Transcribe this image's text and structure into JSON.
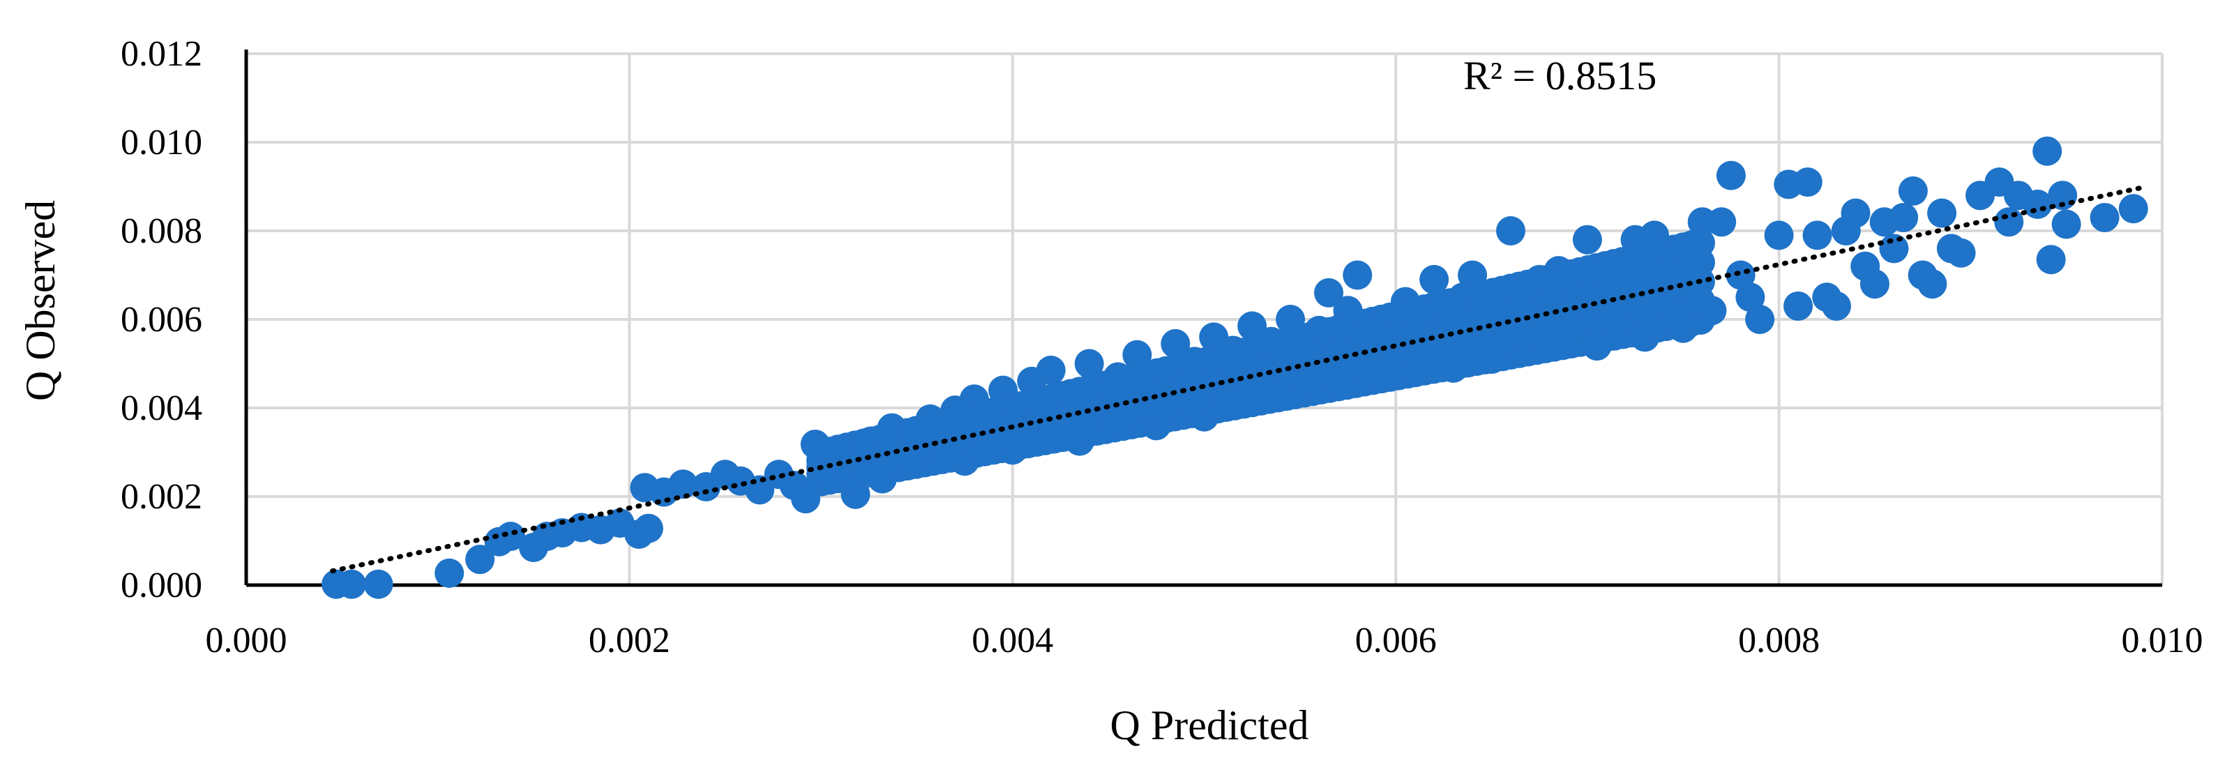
{
  "chart_data": {
    "type": "scatter",
    "xlabel": "Q Predicted",
    "ylabel": "Q Observed",
    "xlim": [
      0,
      0.01
    ],
    "ylim": [
      0,
      0.012
    ],
    "x_ticks": [
      "0.000",
      "0.002",
      "0.004",
      "0.006",
      "0.008",
      "0.010"
    ],
    "y_ticks": [
      "0.000",
      "0.002",
      "0.004",
      "0.006",
      "0.008",
      "0.010",
      "0.012"
    ],
    "grid": true,
    "legend": "none",
    "point_color": "#1F73C8",
    "trendline": {
      "style": "dotted",
      "color": "#000000",
      "x": [
        0.00045,
        0.0099
      ],
      "y": [
        0.00032,
        0.00898
      ],
      "r_squared_label": "R² = 0.8515"
    },
    "points": [
      [
        0.00047,
        2e-05
      ],
      [
        0.00055,
        2e-05
      ],
      [
        0.00069,
        2e-05
      ],
      [
        0.00106,
        0.00027
      ],
      [
        0.00122,
        0.00058
      ],
      [
        0.00132,
        0.00098
      ],
      [
        0.00138,
        0.0011
      ],
      [
        0.0015,
        0.00085
      ],
      [
        0.00157,
        0.0011
      ],
      [
        0.00165,
        0.00118
      ],
      [
        0.00175,
        0.0013
      ],
      [
        0.00185,
        0.00125
      ],
      [
        0.00195,
        0.0014
      ],
      [
        0.00205,
        0.00115
      ],
      [
        0.0021,
        0.00128
      ],
      [
        0.00208,
        0.0022
      ],
      [
        0.00218,
        0.0021
      ],
      [
        0.00228,
        0.00228
      ],
      [
        0.0024,
        0.00222
      ],
      [
        0.0025,
        0.0025
      ],
      [
        0.00258,
        0.00235
      ],
      [
        0.00268,
        0.00215
      ],
      [
        0.00278,
        0.0025
      ],
      [
        0.00286,
        0.00225
      ],
      [
        0.00292,
        0.00195
      ],
      [
        0.00297,
        0.00318
      ],
      [
        0.00302,
        0.0028
      ],
      [
        0.00308,
        0.00245
      ],
      [
        0.00313,
        0.003
      ],
      [
        0.00318,
        0.00205
      ],
      [
        0.00322,
        0.00275
      ],
      [
        0.00326,
        0.00325
      ],
      [
        0.00332,
        0.0024
      ],
      [
        0.00337,
        0.00355
      ],
      [
        0.00342,
        0.003
      ],
      [
        0.00347,
        0.00275
      ],
      [
        0.00352,
        0.00345
      ],
      [
        0.00357,
        0.00375
      ],
      [
        0.00361,
        0.003
      ],
      [
        0.00365,
        0.0033
      ],
      [
        0.0037,
        0.00395
      ],
      [
        0.00375,
        0.0028
      ],
      [
        0.0038,
        0.0042
      ],
      [
        0.00385,
        0.00325
      ],
      [
        0.0039,
        0.00365
      ],
      [
        0.00395,
        0.0044
      ],
      [
        0.004,
        0.00305
      ],
      [
        0.00405,
        0.00395
      ],
      [
        0.0041,
        0.0046
      ],
      [
        0.00415,
        0.0034
      ],
      [
        0.0042,
        0.00485
      ],
      [
        0.00425,
        0.00375
      ],
      [
        0.0043,
        0.0042
      ],
      [
        0.00435,
        0.00325
      ],
      [
        0.0044,
        0.005
      ],
      [
        0.00445,
        0.0044
      ],
      [
        0.0045,
        0.0036
      ],
      [
        0.00455,
        0.0047
      ],
      [
        0.0046,
        0.004
      ],
      [
        0.00465,
        0.0052
      ],
      [
        0.0047,
        0.00445
      ],
      [
        0.00475,
        0.0036
      ],
      [
        0.0048,
        0.0048
      ],
      [
        0.00485,
        0.00545
      ],
      [
        0.0049,
        0.0042
      ],
      [
        0.00495,
        0.00505
      ],
      [
        0.005,
        0.0038
      ],
      [
        0.00505,
        0.0056
      ],
      [
        0.0051,
        0.00455
      ],
      [
        0.00515,
        0.0053
      ],
      [
        0.0052,
        0.0041
      ],
      [
        0.00525,
        0.00585
      ],
      [
        0.0053,
        0.0048
      ],
      [
        0.00535,
        0.0055
      ],
      [
        0.0054,
        0.0043
      ],
      [
        0.00545,
        0.006
      ],
      [
        0.0055,
        0.00505
      ],
      [
        0.00555,
        0.0047
      ],
      [
        0.0056,
        0.00575
      ],
      [
        0.00565,
        0.0066
      ],
      [
        0.0057,
        0.0045
      ],
      [
        0.00575,
        0.0062
      ],
      [
        0.0058,
        0.007
      ],
      [
        0.00585,
        0.0052
      ],
      [
        0.0059,
        0.0047
      ],
      [
        0.00595,
        0.0059
      ],
      [
        0.006,
        0.0054
      ],
      [
        0.00605,
        0.0064
      ],
      [
        0.0061,
        0.0048
      ],
      [
        0.00615,
        0.006
      ],
      [
        0.0062,
        0.0069
      ],
      [
        0.00625,
        0.0054
      ],
      [
        0.0063,
        0.0049
      ],
      [
        0.00635,
        0.0065
      ],
      [
        0.0064,
        0.007
      ],
      [
        0.00645,
        0.0056
      ],
      [
        0.0065,
        0.0051
      ],
      [
        0.00655,
        0.0062
      ],
      [
        0.0066,
        0.008
      ],
      [
        0.00665,
        0.0058
      ],
      [
        0.0067,
        0.0053
      ],
      [
        0.00675,
        0.0069
      ],
      [
        0.0068,
        0.0065
      ],
      [
        0.00685,
        0.0071
      ],
      [
        0.0069,
        0.0056
      ],
      [
        0.00695,
        0.0062
      ],
      [
        0.007,
        0.0078
      ],
      [
        0.00705,
        0.0054
      ],
      [
        0.0071,
        0.0068
      ],
      [
        0.00715,
        0.006
      ],
      [
        0.0072,
        0.0071
      ],
      [
        0.00725,
        0.0078
      ],
      [
        0.0073,
        0.0056
      ],
      [
        0.00735,
        0.0079
      ],
      [
        0.0074,
        0.0065
      ],
      [
        0.00745,
        0.007
      ],
      [
        0.0075,
        0.0058
      ],
      [
        0.00755,
        0.0076
      ],
      [
        0.0076,
        0.0082
      ],
      [
        0.00765,
        0.0062
      ],
      [
        0.0077,
        0.0082
      ],
      [
        0.00775,
        0.00925
      ],
      [
        0.0078,
        0.007
      ],
      [
        0.00785,
        0.0065
      ],
      [
        0.0079,
        0.006
      ],
      [
        0.008,
        0.0079
      ],
      [
        0.00805,
        0.00905
      ],
      [
        0.0081,
        0.0063
      ],
      [
        0.00815,
        0.0091
      ],
      [
        0.0082,
        0.0079
      ],
      [
        0.00825,
        0.0065
      ],
      [
        0.0083,
        0.0063
      ],
      [
        0.00835,
        0.008
      ],
      [
        0.0084,
        0.0084
      ],
      [
        0.00845,
        0.0072
      ],
      [
        0.0085,
        0.0068
      ],
      [
        0.00855,
        0.0082
      ],
      [
        0.0086,
        0.0076
      ],
      [
        0.00865,
        0.0083
      ],
      [
        0.0087,
        0.0089
      ],
      [
        0.00875,
        0.007
      ],
      [
        0.0088,
        0.0068
      ],
      [
        0.00885,
        0.0084
      ],
      [
        0.0089,
        0.0076
      ],
      [
        0.00895,
        0.0075
      ],
      [
        0.00905,
        0.0088
      ],
      [
        0.00915,
        0.0091
      ],
      [
        0.0092,
        0.0082
      ],
      [
        0.00925,
        0.0088
      ],
      [
        0.00935,
        0.0086
      ],
      [
        0.0094,
        0.0098
      ],
      [
        0.00942,
        0.00735
      ],
      [
        0.00948,
        0.0088
      ],
      [
        0.0095,
        0.00815
      ],
      [
        0.0097,
        0.0083
      ],
      [
        0.00985,
        0.0085
      ]
    ],
    "r_squared_text": "R² = 0.8515"
  }
}
